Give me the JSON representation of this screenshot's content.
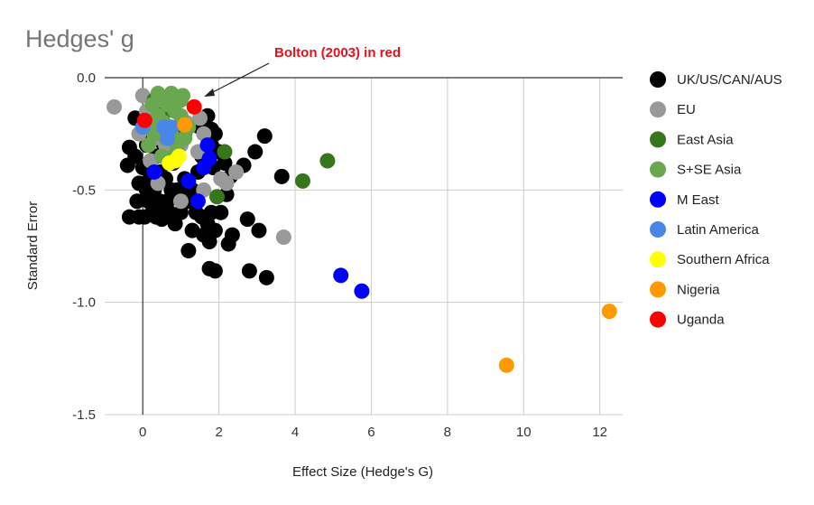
{
  "chart_data": {
    "type": "scatter",
    "title": "Hedges' g",
    "xlabel": "Effect Size (Hedge's G)",
    "ylabel": "Standard Error",
    "xlim": [
      -1,
      12.6
    ],
    "ylim": [
      -1.5,
      0
    ],
    "x_ticks": [
      "0",
      "2",
      "4",
      "6",
      "8",
      "10",
      "12"
    ],
    "y_ticks": [
      "0.0",
      "-0.5",
      "-1.0",
      "-1.5"
    ],
    "grid": true,
    "legend_position": "right",
    "annotation": {
      "text": "Bolton (2003) in red"
    },
    "series": [
      {
        "name": "UK/US/CAN/AUS",
        "color": "#000000",
        "points": [
          [
            -0.35,
            -0.31
          ],
          [
            -0.4,
            -0.39
          ],
          [
            -0.2,
            -0.35
          ],
          [
            -0.1,
            -0.47
          ],
          [
            -0.15,
            -0.55
          ],
          [
            -0.35,
            -0.62
          ],
          [
            -0.1,
            -0.62
          ],
          [
            0.05,
            -0.62
          ],
          [
            0.15,
            -0.55
          ],
          [
            0.3,
            -0.5
          ],
          [
            0.25,
            -0.6
          ],
          [
            0.35,
            -0.62
          ],
          [
            0.5,
            -0.63
          ],
          [
            0.45,
            -0.55
          ],
          [
            0.6,
            -0.58
          ],
          [
            0.7,
            -0.6
          ],
          [
            0.85,
            -0.65
          ],
          [
            1.0,
            -0.6
          ],
          [
            0.9,
            -0.5
          ],
          [
            1.1,
            -0.45
          ],
          [
            0.0,
            -0.4
          ],
          [
            0.1,
            -0.3
          ],
          [
            -0.2,
            -0.18
          ],
          [
            0.2,
            -0.25
          ],
          [
            0.35,
            -0.35
          ],
          [
            0.45,
            -0.42
          ],
          [
            0.6,
            -0.45
          ],
          [
            0.75,
            -0.5
          ],
          [
            1.2,
            -0.55
          ],
          [
            1.3,
            -0.5
          ],
          [
            1.4,
            -0.6
          ],
          [
            1.55,
            -0.62
          ],
          [
            1.6,
            -0.7
          ],
          [
            1.7,
            -0.65
          ],
          [
            1.8,
            -0.6
          ],
          [
            1.9,
            -0.68
          ],
          [
            1.75,
            -0.73
          ],
          [
            1.3,
            -0.68
          ],
          [
            1.2,
            -0.77
          ],
          [
            1.45,
            -0.42
          ],
          [
            1.55,
            -0.35
          ],
          [
            1.8,
            -0.3
          ],
          [
            1.9,
            -0.25
          ],
          [
            1.85,
            -0.4
          ],
          [
            1.5,
            -0.22
          ],
          [
            1.7,
            -0.17
          ],
          [
            1.8,
            -0.23
          ],
          [
            2.0,
            -0.33
          ],
          [
            2.15,
            -0.38
          ],
          [
            2.3,
            -0.44
          ],
          [
            2.2,
            -0.52
          ],
          [
            2.05,
            -0.6
          ],
          [
            2.25,
            -0.74
          ],
          [
            2.35,
            -0.7
          ],
          [
            2.65,
            -0.39
          ],
          [
            2.75,
            -0.63
          ],
          [
            3.05,
            -0.68
          ],
          [
            2.95,
            -0.33
          ],
          [
            3.2,
            -0.26
          ],
          [
            3.65,
            -0.44
          ],
          [
            1.75,
            -0.85
          ],
          [
            1.9,
            -0.86
          ],
          [
            2.8,
            -0.86
          ],
          [
            3.25,
            -0.89
          ],
          [
            0.2,
            -0.45
          ],
          [
            0.55,
            -0.3
          ],
          [
            0.8,
            -0.38
          ],
          [
            1.0,
            -0.5
          ],
          [
            0.65,
            -0.55
          ],
          [
            0.1,
            -0.5
          ]
        ]
      },
      {
        "name": "EU",
        "color": "#999999",
        "points": [
          [
            -0.75,
            -0.13
          ],
          [
            0.0,
            -0.08
          ],
          [
            -0.1,
            -0.25
          ],
          [
            0.15,
            -0.2
          ],
          [
            0.3,
            -0.27
          ],
          [
            0.6,
            -0.3
          ],
          [
            0.9,
            -0.25
          ],
          [
            1.0,
            -0.3
          ],
          [
            1.15,
            -0.2
          ],
          [
            1.5,
            -0.18
          ],
          [
            1.6,
            -0.25
          ],
          [
            1.45,
            -0.33
          ],
          [
            0.4,
            -0.47
          ],
          [
            1.0,
            -0.55
          ],
          [
            1.6,
            -0.5
          ],
          [
            2.05,
            -0.45
          ],
          [
            2.2,
            -0.47
          ],
          [
            2.45,
            -0.42
          ],
          [
            3.7,
            -0.71
          ],
          [
            0.2,
            -0.37
          ],
          [
            0.1,
            -0.15
          ]
        ]
      },
      {
        "name": "East Asia",
        "color": "#38761d",
        "points": [
          [
            4.85,
            -0.37
          ],
          [
            4.2,
            -0.46
          ],
          [
            2.15,
            -0.33
          ],
          [
            1.95,
            -0.53
          ],
          [
            0.9,
            -0.3
          ],
          [
            0.6,
            -0.15
          ],
          [
            1.1,
            -0.25
          ],
          [
            0.3,
            -0.1
          ]
        ]
      },
      {
        "name": "S+SE Asia",
        "color": "#6aa84f",
        "points": [
          [
            0.4,
            -0.07
          ],
          [
            0.75,
            -0.07
          ],
          [
            1.05,
            -0.08
          ],
          [
            0.25,
            -0.12
          ],
          [
            0.5,
            -0.1
          ],
          [
            0.65,
            -0.12
          ],
          [
            0.85,
            -0.15
          ],
          [
            1.0,
            -0.1
          ],
          [
            0.2,
            -0.2
          ],
          [
            0.55,
            -0.2
          ],
          [
            0.4,
            -0.17
          ],
          [
            0.75,
            -0.25
          ],
          [
            1.0,
            -0.17
          ],
          [
            1.2,
            -0.22
          ],
          [
            0.3,
            -0.25
          ],
          [
            0.6,
            -0.27
          ],
          [
            0.9,
            -0.3
          ],
          [
            0.15,
            -0.3
          ],
          [
            0.5,
            -0.35
          ],
          [
            0.8,
            -0.35
          ],
          [
            1.1,
            -0.27
          ],
          [
            0.95,
            -0.1
          ]
        ]
      },
      {
        "name": "M East",
        "color": "#0000ff",
        "points": [
          [
            1.7,
            -0.3
          ],
          [
            1.75,
            -0.36
          ],
          [
            1.6,
            -0.4
          ],
          [
            1.2,
            -0.46
          ],
          [
            1.45,
            -0.55
          ],
          [
            0.3,
            -0.42
          ],
          [
            5.2,
            -0.88
          ],
          [
            5.75,
            -0.95
          ]
        ]
      },
      {
        "name": "Latin America",
        "color": "#4a86e8",
        "points": [
          [
            0.55,
            -0.22
          ],
          [
            0.75,
            -0.22
          ],
          [
            0.65,
            -0.27
          ],
          [
            0.0,
            -0.22
          ]
        ]
      },
      {
        "name": "Southern Africa",
        "color": "#ffff00",
        "points": [
          [
            0.7,
            -0.38
          ],
          [
            0.95,
            -0.35
          ],
          [
            0.85,
            -0.37
          ]
        ]
      },
      {
        "name": "Nigeria",
        "color": "#ff9900",
        "points": [
          [
            9.55,
            -1.28
          ],
          [
            12.25,
            -1.04
          ],
          [
            1.1,
            -0.21
          ]
        ]
      },
      {
        "name": "Uganda",
        "color": "#ff0000",
        "points": [
          [
            0.05,
            -0.19
          ],
          [
            1.35,
            -0.13
          ]
        ]
      }
    ]
  }
}
